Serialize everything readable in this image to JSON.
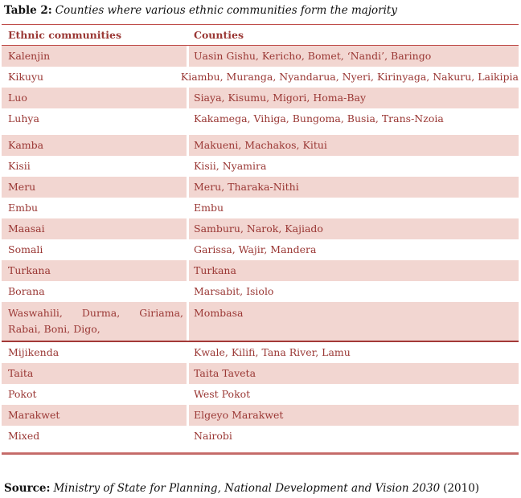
{
  "page": {
    "title_label": "Table 2:",
    "title_text": "Counties where various ethnic communities form the majority"
  },
  "table": {
    "columns": [
      "Ethnic communities",
      "Counties"
    ],
    "rows": [
      {
        "community": "Kalenjin",
        "counties": "Uasin Gishu, Kericho, Bomet, ‘Nandi’, Baringo",
        "shaded": true
      },
      {
        "community": "Kikuyu",
        "counties": "Kiambu, Muranga, Nyandarua, Nyeri, Kirinyaga, Nakuru, Laikipia",
        "shaded": false
      },
      {
        "community": "Luo",
        "counties": "Siaya, Kisumu, Migori, Homa-Bay",
        "shaded": true
      },
      {
        "community": "Luhya",
        "counties": "Kakamega, Vihiga, Bungoma, Busia, Trans-Nzoia",
        "shaded": false
      },
      {
        "community": "Kamba",
        "counties": "Makueni, Machakos, Kitui",
        "shaded": true,
        "gap_before": true
      },
      {
        "community": "Kisii",
        "counties": "Kisii, Nyamira",
        "shaded": false
      },
      {
        "community": "Meru",
        "counties": "Meru, Tharaka-Nithi",
        "shaded": true
      },
      {
        "community": "Embu",
        "counties": "Embu",
        "shaded": false
      },
      {
        "community": "Maasai",
        "counties": "Samburu, Narok, Kajiado",
        "shaded": true
      },
      {
        "community": "Somali",
        "counties": "Garissa, Wajir, Mandera",
        "shaded": false
      },
      {
        "community": "Turkana",
        "counties": "Turkana",
        "shaded": true
      },
      {
        "community": "Borana",
        "counties": "Marsabit, Isiolo",
        "shaded": false
      },
      {
        "community": "Waswahili, Durma, Giriama, Rabai, Boni, Digo,",
        "counties": "Mombasa",
        "shaded": true,
        "multiline": true,
        "divider_after": true
      },
      {
        "community": "Mijikenda",
        "counties": "Kwale, Kilifi, Tana River, Lamu",
        "shaded": false
      },
      {
        "community": "Taita",
        "counties": "Taita Taveta",
        "shaded": true
      },
      {
        "community": "Pokot",
        "counties": "West Pokot",
        "shaded": false
      },
      {
        "community": "Marakwet",
        "counties": "Elgeyo Marakwet",
        "shaded": true
      },
      {
        "community": "Mixed",
        "counties": "Nairobi",
        "shaded": false
      }
    ]
  },
  "source": {
    "label": "Source:",
    "citation": "Ministry of State for Planning, National Development and Vision 2030",
    "year": "(2010)"
  },
  "colors": {
    "row_shade": "#f2d6d1",
    "table_text": "#9a3734",
    "rule_red": "#bf4d4a",
    "rule_dark": "#a33a38"
  }
}
